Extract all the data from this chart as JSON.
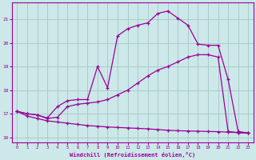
{
  "background_color": "#cce8e8",
  "grid_color": "#aacccc",
  "line_color": "#990099",
  "xlabel": "Windchill (Refroidissement éolien,°C)",
  "xlim": [
    -0.5,
    23.5
  ],
  "ylim": [
    15.8,
    21.7
  ],
  "yticks": [
    16,
    17,
    18,
    19,
    20,
    21
  ],
  "xticks": [
    0,
    1,
    2,
    3,
    4,
    5,
    6,
    7,
    8,
    9,
    10,
    11,
    12,
    13,
    14,
    15,
    16,
    17,
    18,
    19,
    20,
    21,
    22,
    23
  ],
  "series1_x": [
    0,
    1,
    2,
    3,
    4,
    5,
    6,
    7,
    8,
    9,
    10,
    11,
    12,
    13,
    14,
    15,
    16,
    17,
    18,
    19,
    20,
    21,
    22,
    23
  ],
  "series1_y": [
    17.1,
    16.9,
    16.8,
    16.7,
    16.65,
    16.6,
    16.55,
    16.5,
    16.47,
    16.44,
    16.42,
    16.4,
    16.38,
    16.36,
    16.33,
    16.3,
    16.28,
    16.27,
    16.26,
    16.25,
    16.24,
    16.22,
    16.2,
    16.18
  ],
  "series2_x": [
    0,
    1,
    2,
    3,
    4,
    5,
    6,
    7,
    8,
    9,
    10,
    11,
    12,
    13,
    14,
    15,
    16,
    17,
    18,
    19,
    20,
    21,
    22,
    23
  ],
  "series2_y": [
    17.1,
    17.0,
    16.95,
    16.8,
    16.85,
    17.3,
    17.4,
    17.45,
    17.5,
    17.6,
    17.8,
    18.0,
    18.3,
    18.6,
    18.85,
    19.0,
    19.2,
    19.4,
    19.5,
    19.5,
    19.4,
    16.25,
    16.2,
    16.18
  ],
  "series3_x": [
    0,
    1,
    2,
    3,
    4,
    5,
    6,
    7,
    8,
    9,
    10,
    11,
    12,
    13,
    14,
    15,
    16,
    17,
    18,
    19,
    20,
    21,
    22,
    23
  ],
  "series3_y": [
    17.1,
    17.0,
    16.95,
    16.82,
    17.3,
    17.55,
    17.6,
    17.6,
    19.0,
    18.1,
    20.3,
    20.6,
    20.75,
    20.85,
    21.25,
    21.35,
    21.05,
    20.75,
    19.95,
    19.9,
    19.9,
    18.45,
    16.25,
    16.18
  ]
}
